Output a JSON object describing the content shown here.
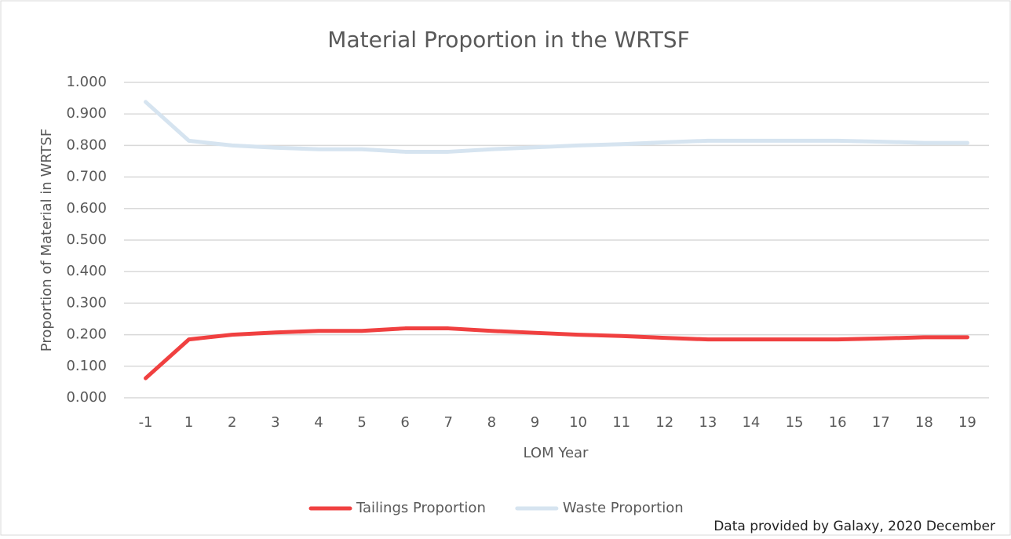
{
  "chart_data": {
    "type": "line",
    "title": "Material Proportion in the WRTSF",
    "x_label": "LOM Year",
    "y_label": "Proportion of Material in WRTSF",
    "note": "Data provided by Galaxy, 2020 December",
    "categories": [
      "-1",
      "1",
      "2",
      "3",
      "4",
      "5",
      "6",
      "7",
      "8",
      "9",
      "10",
      "11",
      "12",
      "13",
      "14",
      "15",
      "16",
      "17",
      "18",
      "19"
    ],
    "series": [
      {
        "name": "Tailings Proportion",
        "color": "#f04040",
        "values": [
          0.062,
          0.185,
          0.2,
          0.207,
          0.212,
          0.212,
          0.22,
          0.22,
          0.212,
          0.206,
          0.2,
          0.196,
          0.19,
          0.185,
          0.185,
          0.185,
          0.185,
          0.188,
          0.192,
          0.192
        ]
      },
      {
        "name": "Waste Proportion",
        "color": "#d6e4f0",
        "values": [
          0.938,
          0.815,
          0.8,
          0.793,
          0.788,
          0.788,
          0.78,
          0.78,
          0.788,
          0.794,
          0.8,
          0.804,
          0.81,
          0.815,
          0.815,
          0.815,
          0.815,
          0.812,
          0.808,
          0.808
        ]
      }
    ],
    "ylim": [
      0,
      1
    ],
    "yticks": [
      {
        "value": 0,
        "label": "0.000"
      },
      {
        "value": 0.1,
        "label": "0.100"
      },
      {
        "value": 0.2,
        "label": "0.200"
      },
      {
        "value": 0.3,
        "label": "0.300"
      },
      {
        "value": 0.4,
        "label": "0.400"
      },
      {
        "value": 0.5,
        "label": "0.500"
      },
      {
        "value": 0.6,
        "label": "0.600"
      },
      {
        "value": 0.7,
        "label": "0.700"
      },
      {
        "value": 0.8,
        "label": "0.800"
      },
      {
        "value": 0.9,
        "label": "0.900"
      },
      {
        "value": 1,
        "label": "1.000"
      }
    ],
    "grid": true,
    "legend": "bottom"
  }
}
